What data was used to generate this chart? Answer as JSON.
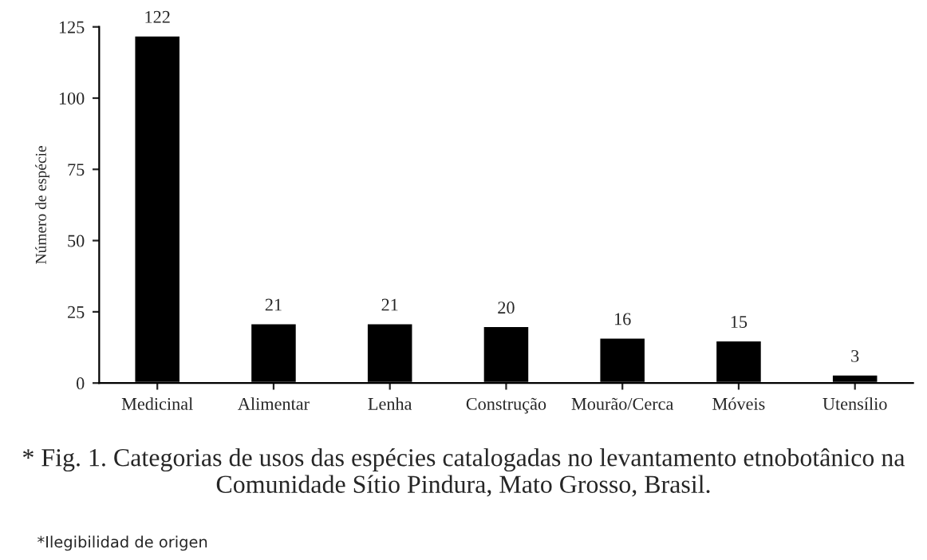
{
  "chart_data": {
    "type": "bar",
    "ylabel": "Número de espécie",
    "categories": [
      "Medicinal",
      "Alimentar",
      "Lenha",
      "Construção",
      "Mourão/Cerca",
      "Móveis",
      "Utensílio"
    ],
    "values": [
      122,
      21,
      21,
      20,
      16,
      15,
      3
    ],
    "color": "#000000",
    "ylim": [
      0,
      125
    ],
    "yticks": [
      0,
      25,
      50,
      75,
      100,
      125
    ],
    "data_labels": true,
    "grid": false,
    "legend": false,
    "annotations": [
      "* Fig. 1. Categorias de usos das espécies catalogadas no levantamento etnobotânico na Comunidade Sítio Pindura, Mato Grosso, Brasil.",
      "*Ilegibilidad de origen"
    ]
  }
}
